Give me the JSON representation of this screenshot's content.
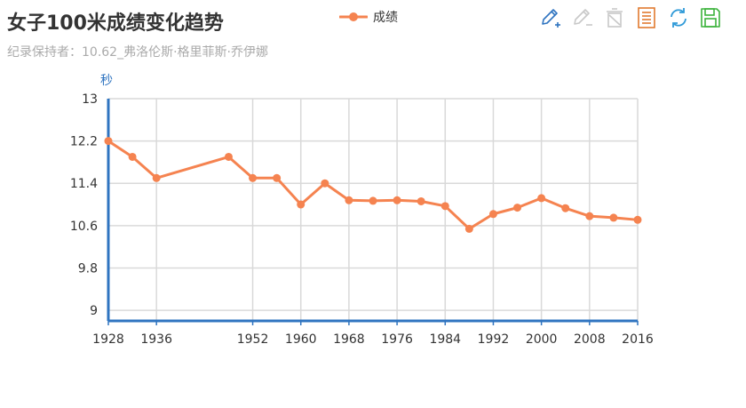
{
  "title": "女子100米成绩变化趋势",
  "subtitle": "纪录保持者：10.62_弗洛伦斯·格里菲斯·乔伊娜",
  "legend": {
    "label": "成绩",
    "color": "#f58350"
  },
  "toolbox": {
    "items": [
      {
        "name": "area-zoom-icon",
        "color": "#2f74c0"
      },
      {
        "name": "zoom-back-icon",
        "color": "#c8c8c8"
      },
      {
        "name": "restore-clear-icon",
        "color": "#c8c8c8"
      },
      {
        "name": "data-view-icon",
        "color": "#e17a2f"
      },
      {
        "name": "refresh-icon",
        "color": "#2f9ad8"
      },
      {
        "name": "save-image-icon",
        "color": "#3cb33c"
      }
    ]
  },
  "chart_data": {
    "type": "line",
    "title": "女子100米成绩变化趋势",
    "subtitle": "纪录保持者：10.62_弗洛伦斯·格里菲斯·乔伊娜",
    "ylabel": "秒",
    "xlabel": "",
    "x": [
      1928,
      1932,
      1936,
      1948,
      1952,
      1956,
      1960,
      1964,
      1968,
      1972,
      1976,
      1980,
      1984,
      1988,
      1992,
      1996,
      2000,
      2004,
      2008,
      2012,
      2016
    ],
    "xlim": [
      1928,
      2016
    ],
    "xticks": [
      1928,
      1936,
      1952,
      1960,
      1968,
      1976,
      1984,
      1992,
      2000,
      2008,
      2016
    ],
    "xtick_labels": [
      "1928",
      "1936",
      "1952",
      "1960",
      "1968",
      "1976",
      "1984",
      "1992",
      "2000",
      "2008",
      "2016"
    ],
    "ylim": [
      8.8,
      13
    ],
    "yticks": [
      9,
      9.8,
      10.6,
      11.4,
      12.2,
      13
    ],
    "ytick_labels": [
      "9",
      "9.8",
      "10.6",
      "11.4",
      "12.2",
      "13"
    ],
    "series": [
      {
        "name": "成绩",
        "color": "#f58350",
        "values": [
          12.2,
          11.9,
          11.5,
          11.9,
          11.5,
          11.5,
          11.0,
          11.4,
          11.08,
          11.07,
          11.08,
          11.06,
          10.97,
          10.54,
          10.82,
          10.94,
          11.12,
          10.93,
          10.78,
          10.75,
          10.71
        ]
      }
    ],
    "grid": true,
    "legend_position": "top-center"
  }
}
